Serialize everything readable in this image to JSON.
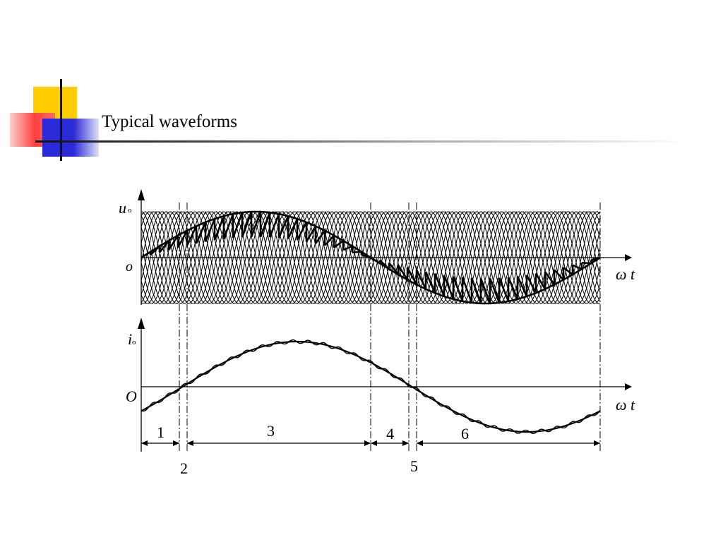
{
  "slide": {
    "title": "Typical waveforms"
  },
  "figure": {
    "top_plot": {
      "y_axis_label": "u",
      "y_axis_subscript": "o",
      "origin_label": "o",
      "x_axis_label": "ω t"
    },
    "bottom_plot": {
      "y_axis_label": "i",
      "y_axis_subscript": "o",
      "origin_label": "O",
      "x_axis_label": "ω t"
    },
    "interval_labels": [
      "1",
      "2",
      "3",
      "4",
      "5",
      "6"
    ]
  },
  "colors": {
    "accent_yellow": "#ffcc00",
    "accent_red": "#ff4040",
    "accent_blue": "#2a2ad8",
    "line": "#000000"
  }
}
